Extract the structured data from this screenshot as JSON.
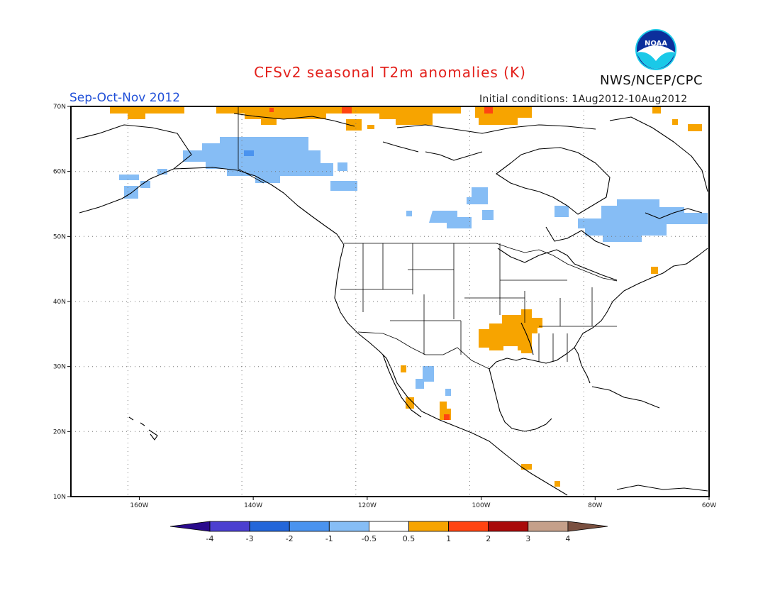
{
  "header": {
    "title": "CFSv2 seasonal T2m anomalies (K)",
    "season": "Sep-Oct-Nov 2012",
    "initial_conditions": "Initial conditions: 1Aug2012-10Aug2012",
    "agency": "NWS/NCEP/CPC",
    "logo_text": "NOAA"
  },
  "map": {
    "lon_range": [
      -172,
      -60
    ],
    "lat_range": [
      10,
      70
    ],
    "lat_ticks": [
      "10N",
      "20N",
      "30N",
      "40N",
      "50N",
      "60N",
      "70N"
    ],
    "lon_ticks": [
      "160W",
      "140W",
      "120W",
      "100W",
      "80W",
      "60W"
    ],
    "grid": "dotted"
  },
  "colorbar": {
    "labels": [
      "-4",
      "-3",
      "-2",
      "-1",
      "-0.5",
      "0.5",
      "1",
      "2",
      "3",
      "4"
    ],
    "colors": [
      "#2a0b8c",
      "#4b3fd0",
      "#2366d9",
      "#4a93ef",
      "#86bdf5",
      "#ffffff",
      "#f7a400",
      "#ff4411",
      "#a90a0a",
      "#c5a08a",
      "#7a5040"
    ]
  },
  "colors": {
    "title": "#e3201b",
    "season": "#1f4fd8",
    "warm": "#f7a400",
    "cool": "#86bdf5"
  }
}
